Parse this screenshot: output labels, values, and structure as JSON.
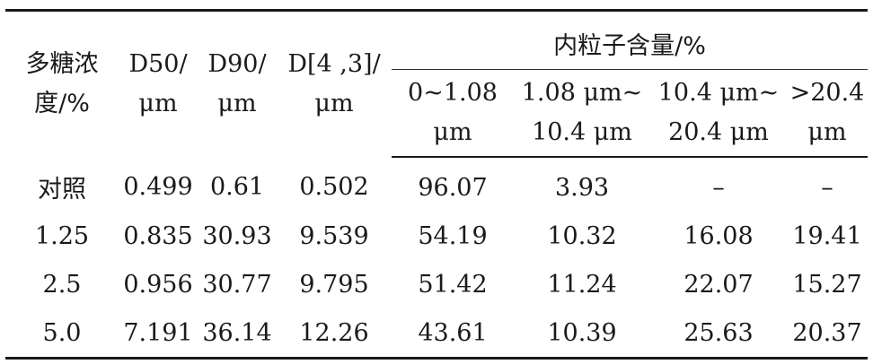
{
  "table": {
    "headers": {
      "col0": [
        "多糖浓",
        "度/%"
      ],
      "col1": [
        "D50/",
        "μm"
      ],
      "col2": [
        "D90/",
        "μm"
      ],
      "col3": [
        "D[4 ,3]/",
        "μm"
      ],
      "group": "内粒子含量/%",
      "sub": [
        [
          "0~1.08",
          "μm"
        ],
        [
          "1.08 μm~",
          "10.4 μm"
        ],
        [
          "10.4 μm~",
          "20.4 μm"
        ],
        [
          ">20.4",
          "μm"
        ]
      ]
    },
    "rows": [
      [
        "对照",
        "0.499",
        "0.61",
        "0.502",
        "96.07",
        "3.93",
        "–",
        "–"
      ],
      [
        "1.25",
        "0.835",
        "30.93",
        "9.539",
        "54.19",
        "10.32",
        "16.08",
        "19.41"
      ],
      [
        "2.5",
        "0.956",
        "30.77",
        "9.795",
        "51.42",
        "11.24",
        "22.07",
        "15.27"
      ],
      [
        "5.0",
        "7.191",
        "36.14",
        "12.26",
        "43.61",
        "10.39",
        "25.63",
        "20.37"
      ]
    ]
  }
}
